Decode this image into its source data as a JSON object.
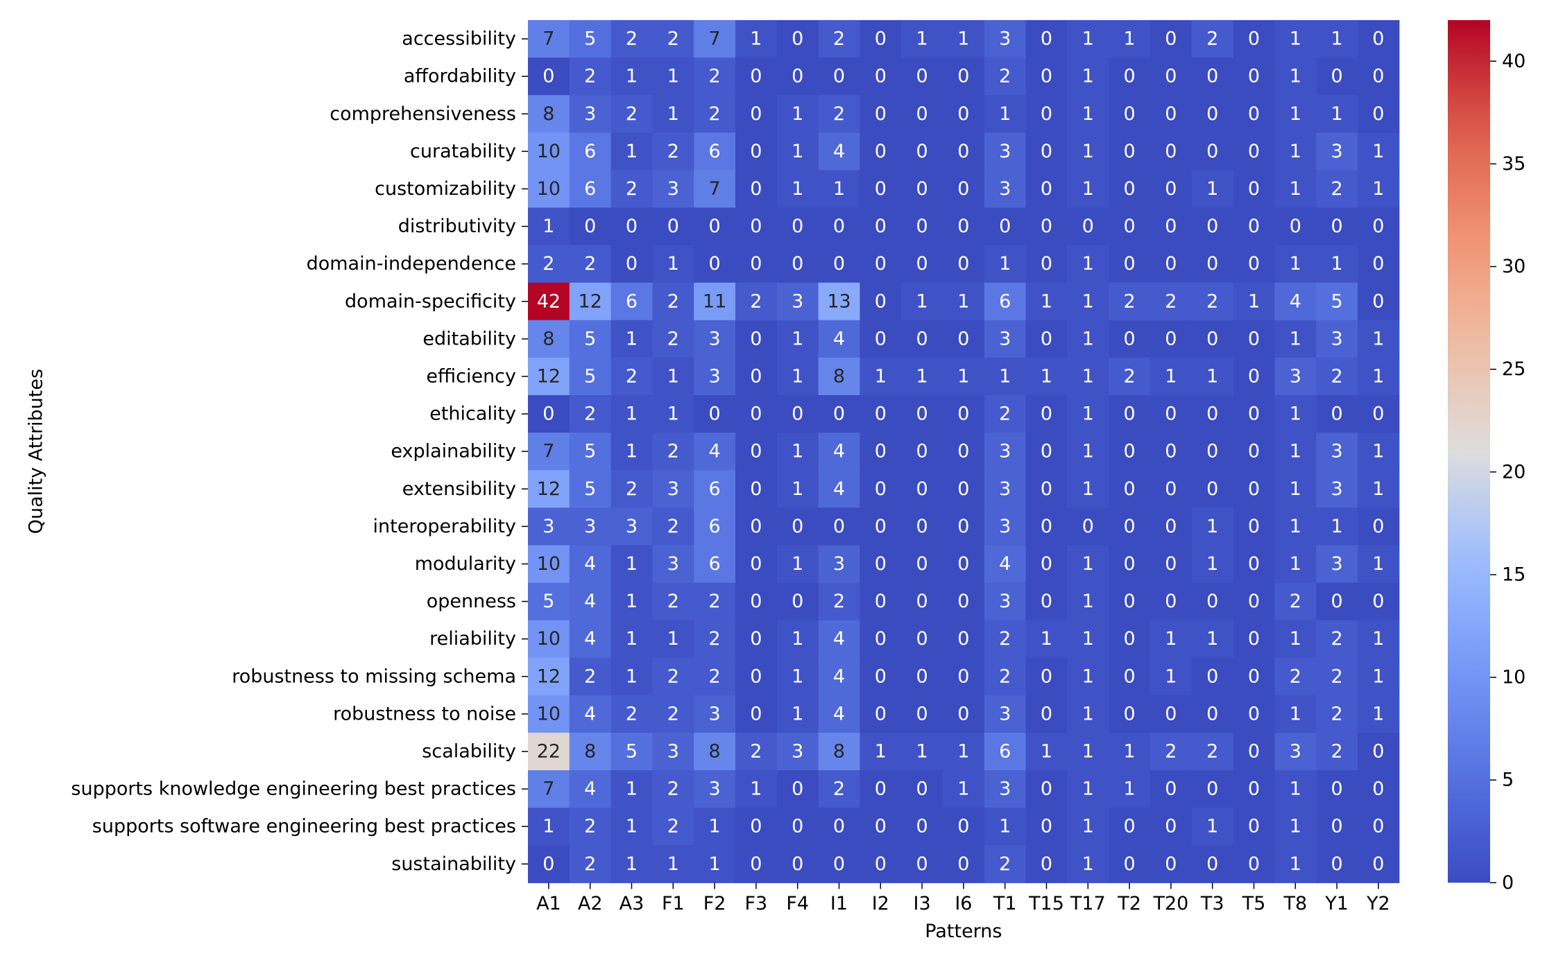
{
  "chart_data": {
    "type": "heatmap",
    "title": "",
    "xlabel": "Patterns",
    "ylabel": "Quality Attributes",
    "x_categories": [
      "A1",
      "A2",
      "A3",
      "F1",
      "F2",
      "F3",
      "F4",
      "I1",
      "I2",
      "I3",
      "I6",
      "T1",
      "T15",
      "T17",
      "T2",
      "T20",
      "T3",
      "T5",
      "T8",
      "Y1",
      "Y2"
    ],
    "y_categories": [
      "accessibility",
      "affordability",
      "comprehensiveness",
      "curatability",
      "customizability",
      "distributivity",
      "domain-independence",
      "domain-specificity",
      "editability",
      "efficiency",
      "ethicality",
      "explainability",
      "extensibility",
      "interoperability",
      "modularity",
      "openness",
      "reliability",
      "robustness to missing schema",
      "robustness to noise",
      "scalability",
      "supports knowledge engineering best practices",
      "supports software engineering best practices",
      "sustainability"
    ],
    "values": [
      [
        7,
        5,
        2,
        2,
        7,
        1,
        0,
        2,
        0,
        1,
        1,
        3,
        0,
        1,
        1,
        0,
        2,
        0,
        1,
        1,
        0
      ],
      [
        0,
        2,
        1,
        1,
        2,
        0,
        0,
        0,
        0,
        0,
        0,
        2,
        0,
        1,
        0,
        0,
        0,
        0,
        1,
        0,
        0
      ],
      [
        8,
        3,
        2,
        1,
        2,
        0,
        1,
        2,
        0,
        0,
        0,
        1,
        0,
        1,
        0,
        0,
        0,
        0,
        1,
        1,
        0
      ],
      [
        10,
        6,
        1,
        2,
        6,
        0,
        1,
        4,
        0,
        0,
        0,
        3,
        0,
        1,
        0,
        0,
        0,
        0,
        1,
        3,
        1
      ],
      [
        10,
        6,
        2,
        3,
        7,
        0,
        1,
        1,
        0,
        0,
        0,
        3,
        0,
        1,
        0,
        0,
        1,
        0,
        1,
        2,
        1
      ],
      [
        1,
        0,
        0,
        0,
        0,
        0,
        0,
        0,
        0,
        0,
        0,
        0,
        0,
        0,
        0,
        0,
        0,
        0,
        0,
        0,
        0
      ],
      [
        2,
        2,
        0,
        1,
        0,
        0,
        0,
        0,
        0,
        0,
        0,
        1,
        0,
        1,
        0,
        0,
        0,
        0,
        1,
        1,
        0
      ],
      [
        42,
        12,
        6,
        2,
        11,
        2,
        3,
        13,
        0,
        1,
        1,
        6,
        1,
        1,
        2,
        2,
        2,
        1,
        4,
        5,
        0
      ],
      [
        8,
        5,
        1,
        2,
        3,
        0,
        1,
        4,
        0,
        0,
        0,
        3,
        0,
        1,
        0,
        0,
        0,
        0,
        1,
        3,
        1
      ],
      [
        12,
        5,
        2,
        1,
        3,
        0,
        1,
        8,
        1,
        1,
        1,
        1,
        1,
        1,
        2,
        1,
        1,
        0,
        3,
        2,
        1
      ],
      [
        0,
        2,
        1,
        1,
        0,
        0,
        0,
        0,
        0,
        0,
        0,
        2,
        0,
        1,
        0,
        0,
        0,
        0,
        1,
        0,
        0
      ],
      [
        7,
        5,
        1,
        2,
        4,
        0,
        1,
        4,
        0,
        0,
        0,
        3,
        0,
        1,
        0,
        0,
        0,
        0,
        1,
        3,
        1
      ],
      [
        12,
        5,
        2,
        3,
        6,
        0,
        1,
        4,
        0,
        0,
        0,
        3,
        0,
        1,
        0,
        0,
        0,
        0,
        1,
        3,
        1
      ],
      [
        3,
        3,
        3,
        2,
        6,
        0,
        0,
        0,
        0,
        0,
        0,
        3,
        0,
        0,
        0,
        0,
        1,
        0,
        1,
        1,
        0
      ],
      [
        10,
        4,
        1,
        3,
        6,
        0,
        1,
        3,
        0,
        0,
        0,
        4,
        0,
        1,
        0,
        0,
        1,
        0,
        1,
        3,
        1
      ],
      [
        5,
        4,
        1,
        2,
        2,
        0,
        0,
        2,
        0,
        0,
        0,
        3,
        0,
        1,
        0,
        0,
        0,
        0,
        2,
        0,
        0
      ],
      [
        10,
        4,
        1,
        1,
        2,
        0,
        1,
        4,
        0,
        0,
        0,
        2,
        1,
        1,
        0,
        1,
        1,
        0,
        1,
        2,
        1
      ],
      [
        12,
        2,
        1,
        2,
        2,
        0,
        1,
        4,
        0,
        0,
        0,
        2,
        0,
        1,
        0,
        1,
        0,
        0,
        2,
        2,
        1
      ],
      [
        10,
        4,
        2,
        2,
        3,
        0,
        1,
        4,
        0,
        0,
        0,
        3,
        0,
        1,
        0,
        0,
        0,
        0,
        1,
        2,
        1
      ],
      [
        22,
        8,
        5,
        3,
        8,
        2,
        3,
        8,
        1,
        1,
        1,
        6,
        1,
        1,
        1,
        2,
        2,
        0,
        3,
        2,
        0
      ],
      [
        7,
        4,
        1,
        2,
        3,
        1,
        0,
        2,
        0,
        0,
        1,
        3,
        0,
        1,
        1,
        0,
        0,
        0,
        1,
        0,
        0
      ],
      [
        1,
        2,
        1,
        2,
        1,
        0,
        0,
        0,
        0,
        0,
        0,
        1,
        0,
        1,
        0,
        0,
        1,
        0,
        1,
        0,
        0
      ],
      [
        0,
        2,
        1,
        1,
        1,
        0,
        0,
        0,
        0,
        0,
        0,
        2,
        0,
        1,
        0,
        0,
        0,
        0,
        1,
        0,
        0
      ]
    ],
    "colormap": "coolwarm",
    "vmin": 0,
    "vmax": 42,
    "colorbar": {
      "ticks": [
        0,
        5,
        10,
        15,
        20,
        25,
        30,
        35,
        40
      ],
      "tick_labels": [
        "0",
        "5",
        "10",
        "15",
        "20",
        "25",
        "30",
        "35",
        "40"
      ]
    },
    "annotate": true,
    "grid": false
  }
}
